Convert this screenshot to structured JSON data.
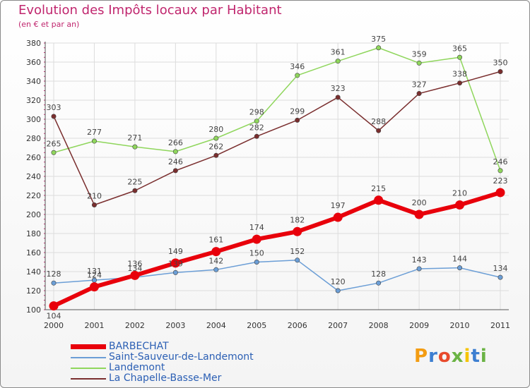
{
  "header": {
    "title": "Evolution des Impôts locaux par Habitant",
    "subtitle": "(en € et par an)"
  },
  "logo": {
    "text": "Proxiti"
  },
  "colors": {
    "title": "#c0266e",
    "legend_text": "#2b5fb4",
    "grid": "#dcdcdc",
    "BARBECHAT": "#e8000b",
    "Saint-Sauveur-de-Landemont": "#6b9ed6",
    "Landemont": "#8fd65c",
    "La Chapelle-Basse-Mer": "#7a2e2e"
  },
  "chart_data": {
    "type": "line",
    "title": "Evolution des Impôts locaux par Habitant",
    "subtitle": "(en € et par an)",
    "xlabel": "",
    "ylabel": "",
    "x": [
      "2000",
      "2001",
      "2002",
      "2003",
      "2004",
      "2005",
      "2006",
      "2007",
      "2008",
      "2009",
      "2010",
      "2011"
    ],
    "ylim": [
      100,
      380
    ],
    "yticks": [
      100,
      120,
      140,
      160,
      180,
      200,
      220,
      240,
      260,
      280,
      300,
      320,
      340,
      360,
      380
    ],
    "grid": true,
    "legend_position": "bottom-left",
    "series": [
      {
        "name": "BARBECHAT",
        "values": [
          104,
          124,
          136,
          149,
          161,
          174,
          182,
          197,
          215,
          200,
          210,
          223
        ]
      },
      {
        "name": "Saint-Sauveur-de-Landemont",
        "values": [
          128,
          131,
          134,
          139,
          142,
          150,
          152,
          120,
          128,
          143,
          144,
          134
        ]
      },
      {
        "name": "Landemont",
        "values": [
          265,
          277,
          271,
          266,
          280,
          298,
          346,
          361,
          375,
          359,
          365,
          246
        ]
      },
      {
        "name": "La Chapelle-Basse-Mer",
        "values": [
          303,
          210,
          225,
          246,
          262,
          282,
          299,
          323,
          288,
          327,
          338,
          350
        ]
      }
    ]
  }
}
